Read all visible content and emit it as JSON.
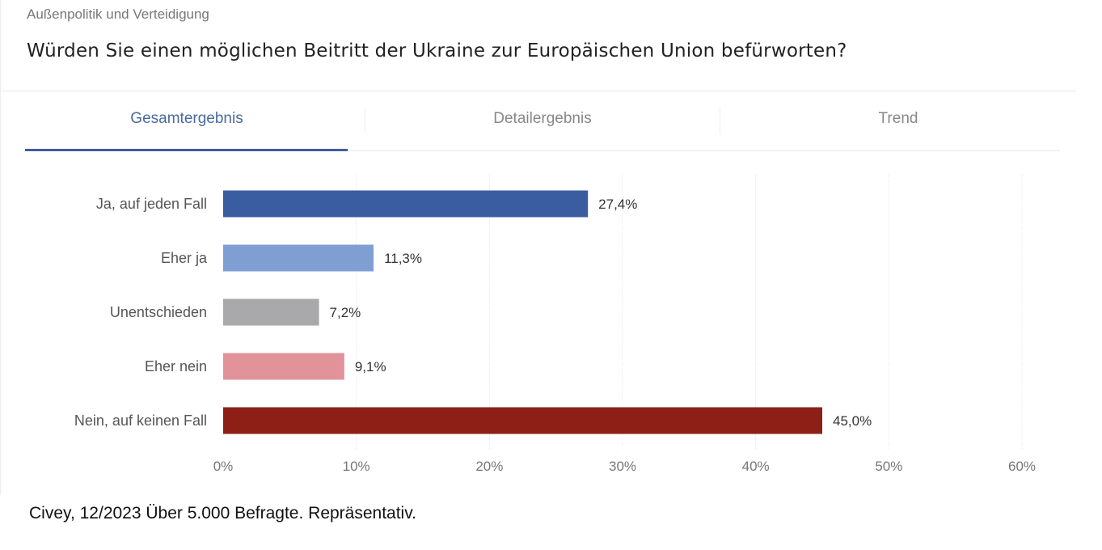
{
  "header": {
    "category": "Außenpolitik und Verteidigung",
    "question": "Würden Sie einen möglichen Beitritt der Ukraine zur Europäischen Union befürworten?"
  },
  "tabs": [
    {
      "label": "Gesamtergebnis",
      "active": true
    },
    {
      "label": "Detailergebnis",
      "active": false
    },
    {
      "label": "Trend",
      "active": false
    }
  ],
  "chart_data": {
    "type": "bar",
    "orientation": "horizontal",
    "categories": [
      "Ja, auf jeden Fall",
      "Eher ja",
      "Unentschieden",
      "Eher nein",
      "Nein, auf keinen Fall"
    ],
    "values": [
      27.4,
      11.3,
      7.2,
      9.1,
      45.0
    ],
    "value_labels": [
      "27,4%",
      "11,3%",
      "7,2%",
      "9,1%",
      "45,0%"
    ],
    "colors": [
      "#3a5ca0",
      "#7f9fd3",
      "#a9a9ab",
      "#e2939a",
      "#8e1f17"
    ],
    "xlim": [
      0,
      60
    ],
    "xticks": [
      "0%",
      "10%",
      "20%",
      "30%",
      "40%",
      "50%",
      "60%"
    ],
    "grid": true
  },
  "footer": "Civey, 12/2023 Über 5.000 Befragte. Repräsentativ."
}
